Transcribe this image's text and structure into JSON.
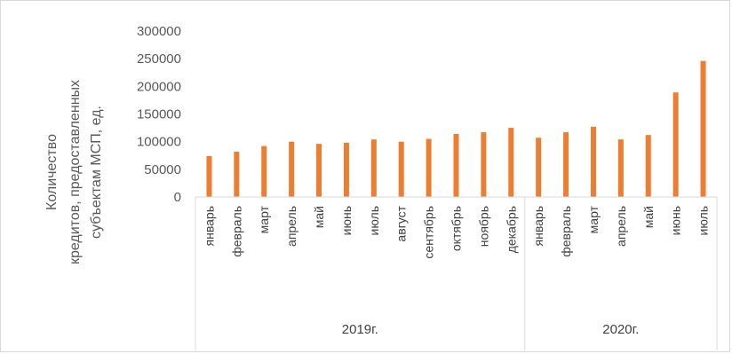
{
  "chart_data": {
    "type": "bar",
    "ylabel_lines": [
      "Количество",
      "кредитов, предоставленных",
      "субъектам МСП, ед."
    ],
    "yticks": [
      "0",
      "50000",
      "100000",
      "150000",
      "200000",
      "250000",
      "300000"
    ],
    "ylim": [
      0,
      300000
    ],
    "grid": false,
    "bar_color": "#ED7D31",
    "categories": [
      "январь",
      "февраль",
      "март",
      "апрель",
      "май",
      "июнь",
      "июль",
      "август",
      "сентябрь",
      "октябрь",
      "ноябрь",
      "декабрь",
      "январь",
      "февраль",
      "март",
      "апрель",
      "май",
      "июнь",
      "июль"
    ],
    "groups": [
      {
        "label": "2019г.",
        "count": 12
      },
      {
        "label": "2020г.",
        "count": 7
      }
    ],
    "values": [
      74000,
      82000,
      92000,
      100000,
      96000,
      98000,
      104000,
      100000,
      105000,
      114000,
      117000,
      125000,
      107000,
      117000,
      127000,
      104000,
      112000,
      189000,
      246000
    ]
  }
}
